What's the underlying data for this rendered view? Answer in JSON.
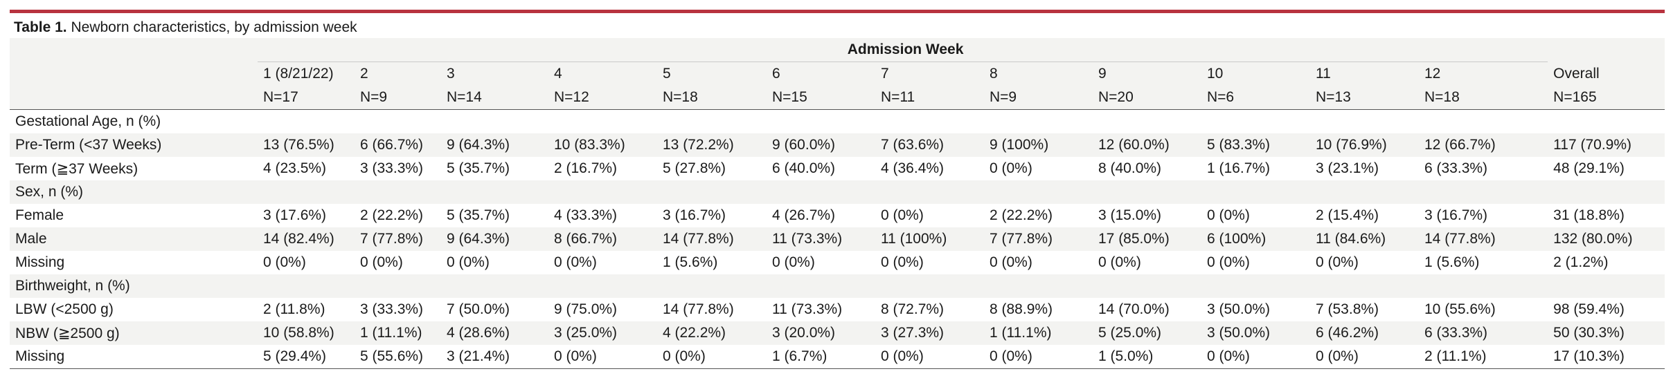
{
  "caption": {
    "label": "Table 1.",
    "text": " Newborn characteristics, by admission week"
  },
  "header": {
    "group_label": "Admission Week",
    "weeks": [
      {
        "num": "1",
        "sub": " (8/21/22)",
        "n": "N=17"
      },
      {
        "num": "2",
        "sub": "",
        "n": "N=9"
      },
      {
        "num": "3",
        "sub": "",
        "n": "N=14"
      },
      {
        "num": "4",
        "sub": "",
        "n": "N=12"
      },
      {
        "num": "5",
        "sub": "",
        "n": "N=18"
      },
      {
        "num": "6",
        "sub": "",
        "n": "N=15"
      },
      {
        "num": "7",
        "sub": "",
        "n": "N=11"
      },
      {
        "num": "8",
        "sub": "",
        "n": "N=9"
      },
      {
        "num": "9",
        "sub": "",
        "n": "N=20"
      },
      {
        "num": "10",
        "sub": "",
        "n": "N=6"
      },
      {
        "num": "11",
        "sub": "",
        "n": "N=13"
      },
      {
        "num": "12",
        "sub": "",
        "n": "N=18"
      }
    ],
    "overall": {
      "label": "Overall",
      "n": "N=165"
    }
  },
  "rows": [
    {
      "type": "section",
      "label": "Gestational Age, n (%)"
    },
    {
      "type": "data",
      "label": "Pre-Term (<37 Weeks)",
      "values": [
        "13 (76.5%)",
        "6 (66.7%)",
        "9 (64.3%)",
        "10 (83.3%)",
        "13 (72.2%)",
        "9 (60.0%)",
        "7 (63.6%)",
        "9 (100%)",
        "12 (60.0%)",
        "5 (83.3%)",
        "10 (76.9%)",
        "12 (66.7%)",
        "117 (70.9%)"
      ]
    },
    {
      "type": "data",
      "label": "Term (≧37 Weeks)",
      "values": [
        "4 (23.5%)",
        "3 (33.3%)",
        "5 (35.7%)",
        "2 (16.7%)",
        "5 (27.8%)",
        "6 (40.0%)",
        "4 (36.4%)",
        "0 (0%)",
        "8 (40.0%)",
        "1 (16.7%)",
        "3 (23.1%)",
        "6 (33.3%)",
        "48 (29.1%)"
      ]
    },
    {
      "type": "section",
      "label": "Sex, n (%)"
    },
    {
      "type": "data",
      "label": "Female",
      "values": [
        "3 (17.6%)",
        "2 (22.2%)",
        "5 (35.7%)",
        "4 (33.3%)",
        "3 (16.7%)",
        "4 (26.7%)",
        "0 (0%)",
        "2 (22.2%)",
        "3 (15.0%)",
        "0 (0%)",
        "2 (15.4%)",
        "3 (16.7%)",
        "31 (18.8%)"
      ]
    },
    {
      "type": "data",
      "label": "Male",
      "values": [
        "14 (82.4%)",
        "7 (77.8%)",
        "9 (64.3%)",
        "8 (66.7%)",
        "14 (77.8%)",
        "11 (73.3%)",
        "11 (100%)",
        "7 (77.8%)",
        "17 (85.0%)",
        "6 (100%)",
        "11 (84.6%)",
        "14 (77.8%)",
        "132 (80.0%)"
      ]
    },
    {
      "type": "data",
      "label": "Missing",
      "values": [
        "0 (0%)",
        "0 (0%)",
        "0 (0%)",
        "0 (0%)",
        "1 (5.6%)",
        "0 (0%)",
        "0 (0%)",
        "0 (0%)",
        "0 (0%)",
        "0 (0%)",
        "0 (0%)",
        "1 (5.6%)",
        "2 (1.2%)"
      ]
    },
    {
      "type": "section",
      "label": "Birthweight, n (%)"
    },
    {
      "type": "data",
      "label": "LBW (<2500 g)",
      "values": [
        "2 (11.8%)",
        "3 (33.3%)",
        "7 (50.0%)",
        "9 (75.0%)",
        "14 (77.8%)",
        "11 (73.3%)",
        "8 (72.7%)",
        "8 (88.9%)",
        "14 (70.0%)",
        "3 (50.0%)",
        "7 (53.8%)",
        "10 (55.6%)",
        "98 (59.4%)"
      ]
    },
    {
      "type": "data",
      "label": "NBW (≧2500 g)",
      "values": [
        "10 (58.8%)",
        "1 (11.1%)",
        "4 (28.6%)",
        "3 (25.0%)",
        "4 (22.2%)",
        "3 (20.0%)",
        "3 (27.3%)",
        "1 (11.1%)",
        "5 (25.0%)",
        "3 (50.0%)",
        "6 (46.2%)",
        "6 (33.3%)",
        "50 (30.3%)"
      ]
    },
    {
      "type": "data",
      "label": "Missing",
      "values": [
        "5 (29.4%)",
        "5 (55.6%)",
        "3 (21.4%)",
        "0 (0%)",
        "0 (0%)",
        "1 (6.7%)",
        "0 (0%)",
        "0 (0%)",
        "1 (5.0%)",
        "0 (0%)",
        "0 (0%)",
        "2 (11.1%)",
        "17 (10.3%)"
      ]
    }
  ]
}
